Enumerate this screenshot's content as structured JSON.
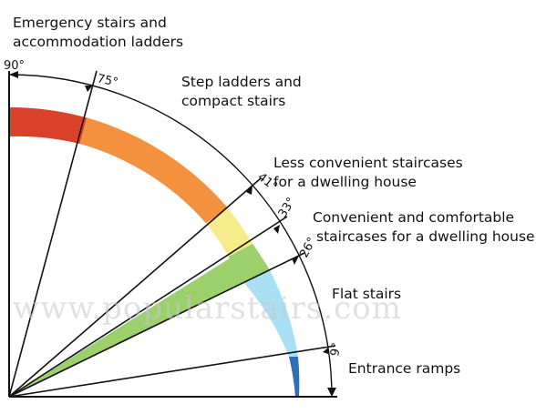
{
  "watermark": "www.popularstairs.com",
  "angles": {
    "a90": "90°",
    "a75": "75°",
    "a41": "41°",
    "a33": "33°",
    "a26": "26°",
    "a9": "9°"
  },
  "zones": [
    {
      "label_lines": [
        "Emergency stairs and",
        "accommodation ladders"
      ]
    },
    {
      "label_lines": [
        "Step ladders and",
        "compact stairs"
      ]
    },
    {
      "label_lines": [
        "Less convenient staircases",
        "for a dwelling house"
      ]
    },
    {
      "label_lines": [
        "Convenient and comfortable",
        "staircases for a dwelling house"
      ]
    },
    {
      "label_lines": [
        "Flat  stairs"
      ]
    },
    {
      "label_lines": [
        "Entrance ramps"
      ]
    }
  ],
  "colors": {
    "emergency": "#d9412a",
    "step_ladders": "#f4913f",
    "less_convenient": "#f6ec8c",
    "comfortable": "#9bd06c",
    "flat": "#a9dff2",
    "ramps": "#2d6fb8",
    "lines": "#111111"
  }
}
